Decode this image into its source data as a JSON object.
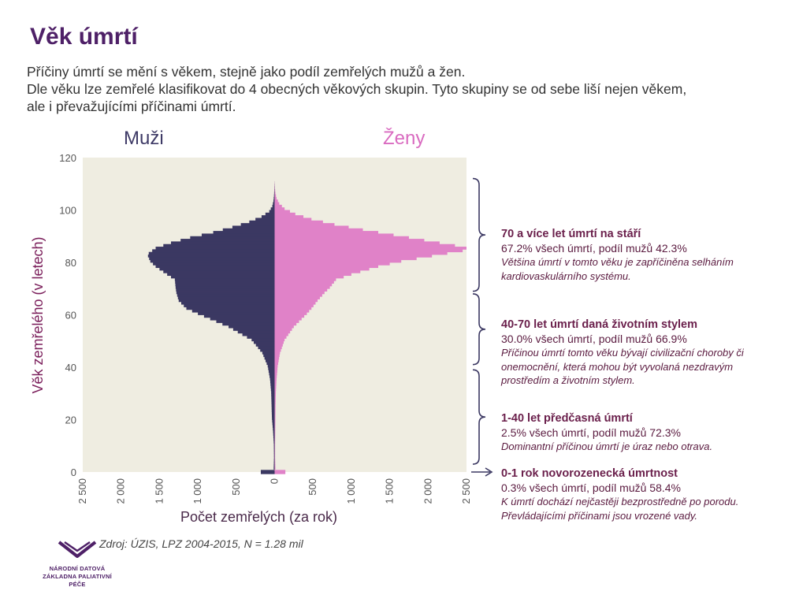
{
  "title": "Věk úmrtí",
  "intro": [
    "Příčiny úmrtí se mění s věkem, stejně jako podíl zemřelých mužů a žen.",
    "Dle věku lze zemřelé klasifikovat do 4 obecných věkových skupin. Tyto skupiny se od sebe liší nejen věkem,",
    "ale i převažujícími příčinami úmrtí."
  ],
  "column_titles": {
    "men": "Muži",
    "women": "Ženy"
  },
  "source": "Zdroj: ÚZIS, LPZ 2004-2015, N = 1.28 mil",
  "logo": {
    "line1": "NÁRODNÍ DATOVÁ",
    "line2": "ZÁKLADNA PALIATIVNÍ PÉČE"
  },
  "groups": [
    {
      "heading": "70 a více let úmrtí na stáří",
      "stat": " 67.2% všech úmrtí, podíl mužů 42.3%",
      "desc": "Většina úmrtí v tomto věku je zapříčiněna selháním kardiovaskulárního systému."
    },
    {
      "heading": "40-70 let úmrtí daná životním stylem",
      "stat": "30.0% všech úmrtí, podíl mužů 66.9%",
      "desc": "Příčinou úmrtí  tomto věku bývají civilizační choroby či onemocnění, která mohou být vyvolaná nezdravým prostředím a životním stylem."
    },
    {
      "heading": "1-40 let předčasná úmrtí",
      "stat": " 2.5% všech úmrtí, podíl mužů 72.3%",
      "desc": "Dominantní příčinou úmrtí je úraz nebo otrava."
    },
    {
      "heading": "0-1 rok novorozenecká úmrtnost",
      "stat": "0.3% všech úmrtí, podíl mužů 58.4%",
      "desc": "K úmrtí dochází nejčastěji bezprostředně po porodu. Převládajícími příčinami jsou vrozené vady."
    }
  ],
  "colors": {
    "men": "#3b3862",
    "women": "#e082c8",
    "plot_bg": "#efede1",
    "title": "#4e2067",
    "annot": "#6a1f4b"
  },
  "chart_data": {
    "type": "bar",
    "orientation": "horizontal-population-pyramid",
    "xlabel": "Počet zemřelých (za rok)",
    "ylabel": "Věk zemřelého (v letech)",
    "xlim": [
      -2500,
      2500
    ],
    "ylim": [
      0,
      120
    ],
    "xticks": [
      -2500,
      -2000,
      -1500,
      -1000,
      -500,
      0,
      500,
      1000,
      1500,
      2000,
      2500
    ],
    "xtick_labels": [
      "2 500",
      "2 000",
      "1 500",
      "1 000",
      "500",
      "0",
      "500",
      "1 000",
      "1 500",
      "2 000",
      "2 500"
    ],
    "yticks": [
      0,
      20,
      40,
      60,
      80,
      100,
      120
    ],
    "series_men": {
      "name": "Muži",
      "anchors": [
        [
          0,
          180
        ],
        [
          1,
          12
        ],
        [
          5,
          8
        ],
        [
          10,
          10
        ],
        [
          15,
          20
        ],
        [
          20,
          35
        ],
        [
          25,
          40
        ],
        [
          30,
          45
        ],
        [
          35,
          60
        ],
        [
          40,
          90
        ],
        [
          45,
          160
        ],
        [
          50,
          300
        ],
        [
          55,
          600
        ],
        [
          60,
          1000
        ],
        [
          62,
          1150
        ],
        [
          65,
          1250
        ],
        [
          68,
          1280
        ],
        [
          70,
          1290
        ],
        [
          73,
          1300
        ],
        [
          75,
          1400
        ],
        [
          78,
          1550
        ],
        [
          80,
          1620
        ],
        [
          82,
          1650
        ],
        [
          83,
          1640
        ],
        [
          85,
          1550
        ],
        [
          87,
          1350
        ],
        [
          89,
          1100
        ],
        [
          91,
          800
        ],
        [
          93,
          550
        ],
        [
          95,
          330
        ],
        [
          97,
          170
        ],
        [
          99,
          70
        ],
        [
          101,
          30
        ],
        [
          103,
          15
        ],
        [
          105,
          8
        ],
        [
          107,
          4
        ],
        [
          110,
          1
        ]
      ]
    },
    "series_women": {
      "name": "Ženy",
      "anchors": [
        [
          0,
          140
        ],
        [
          1,
          10
        ],
        [
          5,
          6
        ],
        [
          10,
          6
        ],
        [
          15,
          8
        ],
        [
          20,
          10
        ],
        [
          25,
          12
        ],
        [
          30,
          16
        ],
        [
          35,
          25
        ],
        [
          40,
          40
        ],
        [
          45,
          70
        ],
        [
          50,
          130
        ],
        [
          55,
          250
        ],
        [
          60,
          420
        ],
        [
          62,
          480
        ],
        [
          65,
          560
        ],
        [
          68,
          650
        ],
        [
          70,
          720
        ],
        [
          73,
          800
        ],
        [
          75,
          1000
        ],
        [
          78,
          1350
        ],
        [
          80,
          1650
        ],
        [
          82,
          2050
        ],
        [
          84,
          2450
        ],
        [
          85,
          2500
        ],
        [
          86,
          2350
        ],
        [
          88,
          1950
        ],
        [
          90,
          1550
        ],
        [
          92,
          1150
        ],
        [
          94,
          780
        ],
        [
          96,
          480
        ],
        [
          98,
          270
        ],
        [
          100,
          130
        ],
        [
          102,
          60
        ],
        [
          104,
          25
        ],
        [
          106,
          10
        ],
        [
          108,
          4
        ],
        [
          110,
          1
        ]
      ]
    }
  }
}
